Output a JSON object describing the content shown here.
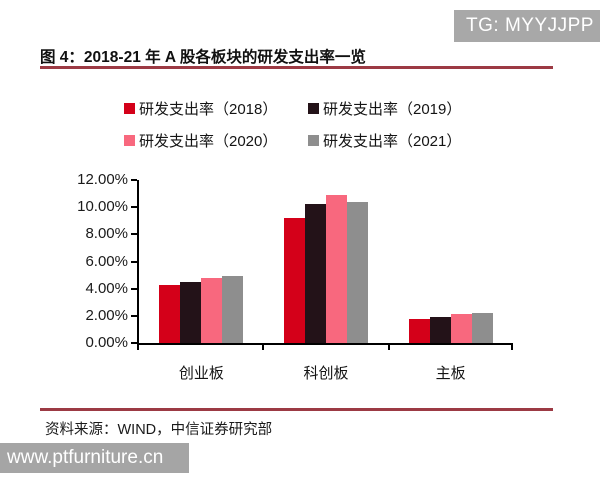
{
  "badge": {
    "label": "TG: MYYJJPP"
  },
  "figure": {
    "title": "图 4：2018-21 年 A 股各板块的研发支出率一览",
    "source": "资料来源：WIND，中信证券研究部"
  },
  "watermark": {
    "label": "www.ptfurniture.cn"
  },
  "colors": {
    "accent_rule": "#9c3a44",
    "badge_bg": "#a8a8a8",
    "watermark_bg": "#a5a5a5",
    "axis": "#000000"
  },
  "chart_data": {
    "type": "bar",
    "title": "2018-21 年 A 股各板块的研发支出率一览",
    "categories": [
      "创业板",
      "科创板",
      "主板"
    ],
    "series": [
      {
        "name": "研发支出率（2018）",
        "color": "#d40019",
        "values": [
          4.3,
          9.2,
          1.8
        ]
      },
      {
        "name": "研发支出率（2019）",
        "color": "#231218",
        "values": [
          4.5,
          10.2,
          1.9
        ]
      },
      {
        "name": "研发支出率（2020）",
        "color": "#f8687e",
        "values": [
          4.8,
          10.9,
          2.1
        ]
      },
      {
        "name": "研发支出率（2021）",
        "color": "#8e8e8e",
        "values": [
          4.9,
          10.4,
          2.2
        ]
      }
    ],
    "ylim": [
      0,
      12
    ],
    "ytick_step": 2,
    "ytick_labels": [
      "0.00%",
      "2.00%",
      "4.00%",
      "6.00%",
      "8.00%",
      "10.00%",
      "12.00%"
    ],
    "xlabel": "",
    "ylabel": "",
    "legend_position": "top",
    "grid": false
  }
}
